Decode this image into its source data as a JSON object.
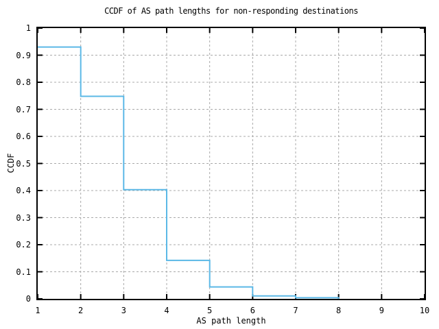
{
  "page": {
    "background_color": "#ffffff",
    "text_color": "#000000"
  },
  "chart_data": {
    "type": "line",
    "line_style": "steps",
    "title": "CCDF of AS path lengths for non-responding destinations",
    "xlabel": "AS path length",
    "ylabel": "CCDF",
    "xlim": [
      1,
      10
    ],
    "ylim": [
      0,
      1
    ],
    "x_ticks": [
      1,
      2,
      3,
      4,
      5,
      6,
      7,
      8,
      9,
      10
    ],
    "x_tick_labels": [
      "1",
      "2",
      "3",
      "4",
      "5",
      "6",
      "7",
      "8",
      "9",
      "10"
    ],
    "y_ticks": [
      0,
      0.1,
      0.2,
      0.3,
      0.4,
      0.5,
      0.6,
      0.7,
      0.8,
      0.9,
      1
    ],
    "y_tick_labels": [
      "0",
      "0.1",
      "0.2",
      "0.3",
      "0.4",
      "0.5",
      "0.6",
      "0.7",
      "0.8",
      "0.9",
      "1"
    ],
    "grid": true,
    "grid_style": "dashed",
    "legend_position": "none",
    "line_color": "#5bb8e6",
    "grid_color": "#a8a8a8",
    "border_color": "#000000",
    "series": [
      {
        "name": "ccdf-of-as-path-length",
        "points": [
          [
            1,
            0.93
          ],
          [
            2,
            0.93
          ],
          [
            2,
            0.748
          ],
          [
            3,
            0.748
          ],
          [
            3,
            0.403
          ],
          [
            4,
            0.403
          ],
          [
            4,
            0.142
          ],
          [
            5,
            0.142
          ],
          [
            5,
            0.044
          ],
          [
            6,
            0.044
          ],
          [
            6,
            0.011
          ],
          [
            7,
            0.011
          ],
          [
            7,
            0.004
          ],
          [
            8,
            0.004
          ],
          [
            8,
            0
          ]
        ]
      }
    ],
    "step_values_by_path_length": {
      "1": 0.93,
      "2": 0.748,
      "3": 0.403,
      "4": 0.142,
      "5": 0.044,
      "6": 0.011,
      "7": 0.004,
      "8": 0
    }
  }
}
